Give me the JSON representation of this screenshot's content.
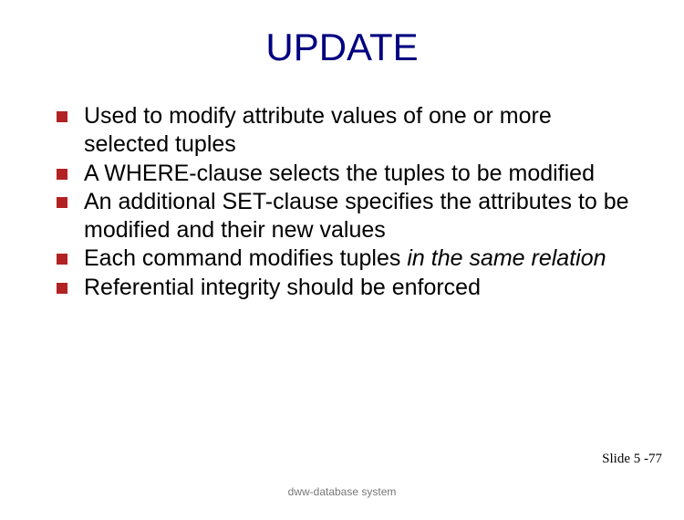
{
  "slide": {
    "title": "UPDATE",
    "title_color": "#000080",
    "title_fontsize": 42,
    "bullets": [
      {
        "text": "Used to modify attribute values of one or more selected tuples"
      },
      {
        "text": "A WHERE-clause selects the tuples to be modified"
      },
      {
        "text": "An additional SET-clause specifies the attributes to be modified and their new values"
      },
      {
        "text_pre": "Each command modifies tuples ",
        "text_italic": "in the same relation"
      },
      {
        "text": "Referential integrity should be enforced"
      }
    ],
    "bullet_color": "#b22222",
    "body_fontsize": 25,
    "body_color": "#000000",
    "slide_number": "Slide 5 -77",
    "footer": "dww-database system",
    "background_color": "#ffffff"
  }
}
